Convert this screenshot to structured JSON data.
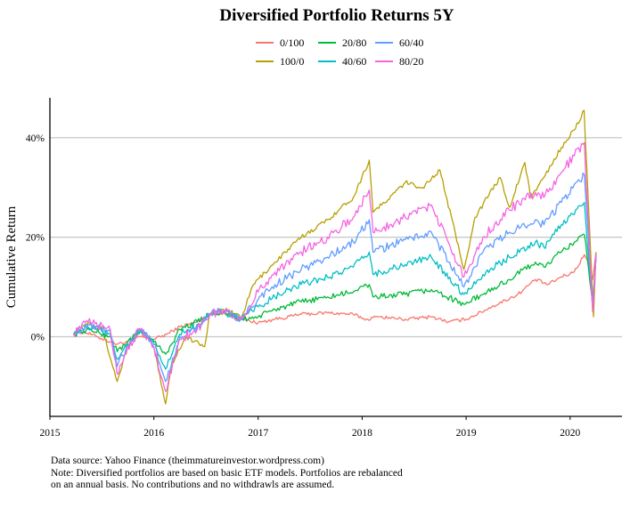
{
  "chart_data": {
    "type": "line",
    "title": "Diversified Portfolio Returns 5Y",
    "ylabel": "Cumulative Return",
    "xlabel": "",
    "x_ticks": [
      "2015",
      "2016",
      "2017",
      "2018",
      "2019",
      "2020"
    ],
    "y_ticks": [
      "0%",
      "20%",
      "40%"
    ],
    "x_range": [
      "2015-01-01",
      "2020-07-01"
    ],
    "ylim": [
      -16,
      48
    ],
    "grid": "horizontal major lines",
    "legend_position": "top",
    "series": [
      {
        "name": "0/100",
        "color": "#F8766D",
        "points": [
          [
            "2015-03-25",
            0.5
          ],
          [
            "2015-05-01",
            1.0
          ],
          [
            "2015-06-15",
            0.0
          ],
          [
            "2015-08-01",
            -1.0
          ],
          [
            "2015-08-25",
            -1.5
          ],
          [
            "2015-10-01",
            -1.0
          ],
          [
            "2015-11-15",
            0.0
          ],
          [
            "2016-01-01",
            -0.5
          ],
          [
            "2016-02-15",
            0.5
          ],
          [
            "2016-04-01",
            2.0
          ],
          [
            "2016-06-01",
            3.0
          ],
          [
            "2016-07-15",
            4.5
          ],
          [
            "2016-09-01",
            4.8
          ],
          [
            "2016-11-01",
            3.5
          ],
          [
            "2017-01-01",
            2.8
          ],
          [
            "2017-03-01",
            3.5
          ],
          [
            "2017-06-01",
            4.5
          ],
          [
            "2017-09-01",
            4.8
          ],
          [
            "2017-12-01",
            4.5
          ],
          [
            "2018-01-15",
            3.5
          ],
          [
            "2018-03-01",
            4.0
          ],
          [
            "2018-06-01",
            3.5
          ],
          [
            "2018-09-01",
            4.0
          ],
          [
            "2018-11-01",
            3.0
          ],
          [
            "2019-01-01",
            3.5
          ],
          [
            "2019-04-01",
            6.0
          ],
          [
            "2019-07-01",
            8.5
          ],
          [
            "2019-09-01",
            11.5
          ],
          [
            "2019-10-15",
            10.5
          ],
          [
            "2019-12-01",
            12.0
          ],
          [
            "2020-01-15",
            13.0
          ],
          [
            "2020-02-20",
            16.5
          ],
          [
            "2020-03-10",
            14.0
          ],
          [
            "2020-03-20",
            11.5
          ],
          [
            "2020-04-01",
            17.0
          ]
        ]
      },
      {
        "name": "100/0",
        "color": "#B79F00",
        "points": [
          [
            "2015-03-25",
            0.5
          ],
          [
            "2015-05-15",
            3.0
          ],
          [
            "2015-07-01",
            2.0
          ],
          [
            "2015-08-25",
            -9.0
          ],
          [
            "2015-10-01",
            -2.0
          ],
          [
            "2015-11-15",
            1.5
          ],
          [
            "2016-01-01",
            -2.0
          ],
          [
            "2016-02-11",
            -13.5
          ],
          [
            "2016-03-01",
            -6.0
          ],
          [
            "2016-04-20",
            0.0
          ],
          [
            "2016-06-27",
            -2.0
          ],
          [
            "2016-07-15",
            4.5
          ],
          [
            "2016-09-01",
            5.5
          ],
          [
            "2016-11-05",
            4.0
          ],
          [
            "2016-12-15",
            10.5
          ],
          [
            "2017-03-01",
            15.0
          ],
          [
            "2017-06-01",
            20.0
          ],
          [
            "2017-09-01",
            23.5
          ],
          [
            "2017-12-01",
            28.0
          ],
          [
            "2018-01-26",
            35.5
          ],
          [
            "2018-02-08",
            25.0
          ],
          [
            "2018-04-01",
            27.5
          ],
          [
            "2018-06-01",
            31.0
          ],
          [
            "2018-08-01",
            30.0
          ],
          [
            "2018-10-01",
            33.5
          ],
          [
            "2018-12-24",
            13.5
          ],
          [
            "2019-02-01",
            24.0
          ],
          [
            "2019-04-30",
            32.0
          ],
          [
            "2019-06-03",
            26.0
          ],
          [
            "2019-07-26",
            35.0
          ],
          [
            "2019-08-15",
            28.0
          ],
          [
            "2019-10-01",
            32.0
          ],
          [
            "2019-12-01",
            38.0
          ],
          [
            "2020-01-15",
            41.5
          ],
          [
            "2020-02-19",
            45.5
          ],
          [
            "2020-03-23",
            4.0
          ],
          [
            "2020-04-01",
            17.0
          ]
        ]
      },
      {
        "name": "20/80",
        "color": "#00BA38",
        "points": [
          [
            "2015-03-25",
            0.5
          ],
          [
            "2015-05-15",
            1.5
          ],
          [
            "2015-08-01",
            0.0
          ],
          [
            "2015-08-25",
            -3.0
          ],
          [
            "2015-10-01",
            -1.0
          ],
          [
            "2015-11-15",
            1.0
          ],
          [
            "2016-01-01",
            -1.0
          ],
          [
            "2016-02-11",
            -3.5
          ],
          [
            "2016-04-01",
            1.5
          ],
          [
            "2016-06-01",
            3.0
          ],
          [
            "2016-07-15",
            4.5
          ],
          [
            "2016-09-01",
            5.0
          ],
          [
            "2016-11-01",
            3.5
          ],
          [
            "2017-01-01",
            4.0
          ],
          [
            "2017-03-01",
            5.5
          ],
          [
            "2017-06-01",
            7.0
          ],
          [
            "2017-09-01",
            8.0
          ],
          [
            "2017-12-01",
            9.0
          ],
          [
            "2018-01-26",
            10.5
          ],
          [
            "2018-02-08",
            8.0
          ],
          [
            "2018-06-01",
            8.5
          ],
          [
            "2018-09-01",
            9.5
          ],
          [
            "2018-12-24",
            6.5
          ],
          [
            "2019-03-01",
            8.5
          ],
          [
            "2019-06-01",
            11.5
          ],
          [
            "2019-09-01",
            15.0
          ],
          [
            "2019-10-01",
            14.0
          ],
          [
            "2019-12-01",
            17.0
          ],
          [
            "2020-02-20",
            20.5
          ],
          [
            "2020-03-20",
            7.0
          ],
          [
            "2020-04-01",
            16.5
          ]
        ]
      },
      {
        "name": "40/60",
        "color": "#00BFC4",
        "points": [
          [
            "2015-03-25",
            0.5
          ],
          [
            "2015-05-15",
            2.0
          ],
          [
            "2015-08-01",
            0.5
          ],
          [
            "2015-08-25",
            -4.5
          ],
          [
            "2015-10-01",
            -1.5
          ],
          [
            "2015-11-15",
            1.2
          ],
          [
            "2016-01-01",
            -1.5
          ],
          [
            "2016-02-11",
            -6.5
          ],
          [
            "2016-04-01",
            0.5
          ],
          [
            "2016-06-01",
            2.5
          ],
          [
            "2016-07-15",
            4.5
          ],
          [
            "2016-09-01",
            5.0
          ],
          [
            "2016-11-01",
            3.5
          ],
          [
            "2017-01-01",
            6.0
          ],
          [
            "2017-03-01",
            8.0
          ],
          [
            "2017-06-01",
            10.5
          ],
          [
            "2017-09-01",
            12.0
          ],
          [
            "2017-12-01",
            14.0
          ],
          [
            "2018-01-26",
            17.0
          ],
          [
            "2018-02-08",
            12.5
          ],
          [
            "2018-06-01",
            14.5
          ],
          [
            "2018-09-01",
            16.0
          ],
          [
            "2018-12-24",
            8.5
          ],
          [
            "2019-03-01",
            12.5
          ],
          [
            "2019-06-01",
            16.0
          ],
          [
            "2019-09-01",
            19.0
          ],
          [
            "2019-10-01",
            18.0
          ],
          [
            "2019-12-01",
            22.5
          ],
          [
            "2020-02-20",
            27.0
          ],
          [
            "2020-03-20",
            6.0
          ],
          [
            "2020-04-01",
            16.0
          ]
        ]
      },
      {
        "name": "60/40",
        "color": "#619CFF",
        "points": [
          [
            "2015-03-25",
            0.5
          ],
          [
            "2015-05-15",
            2.5
          ],
          [
            "2015-08-01",
            1.0
          ],
          [
            "2015-08-25",
            -6.0
          ],
          [
            "2015-10-01",
            -2.0
          ],
          [
            "2015-11-15",
            1.5
          ],
          [
            "2016-01-01",
            -1.5
          ],
          [
            "2016-02-11",
            -9.0
          ],
          [
            "2016-04-01",
            0.0
          ],
          [
            "2016-06-01",
            2.0
          ],
          [
            "2016-07-15",
            4.5
          ],
          [
            "2016-09-01",
            5.2
          ],
          [
            "2016-11-01",
            3.5
          ],
          [
            "2017-01-01",
            7.5
          ],
          [
            "2017-03-01",
            10.5
          ],
          [
            "2017-06-01",
            13.5
          ],
          [
            "2017-09-01",
            16.0
          ],
          [
            "2017-12-01",
            19.0
          ],
          [
            "2018-01-26",
            23.5
          ],
          [
            "2018-02-08",
            17.0
          ],
          [
            "2018-06-01",
            19.5
          ],
          [
            "2018-09-01",
            21.0
          ],
          [
            "2018-12-24",
            10.0
          ],
          [
            "2019-03-01",
            17.0
          ],
          [
            "2019-06-01",
            21.0
          ],
          [
            "2019-09-01",
            23.5
          ],
          [
            "2019-10-01",
            22.5
          ],
          [
            "2019-12-01",
            27.0
          ],
          [
            "2020-02-20",
            32.5
          ],
          [
            "2020-03-20",
            5.5
          ],
          [
            "2020-04-01",
            16.0
          ]
        ]
      },
      {
        "name": "80/20",
        "color": "#F564E3",
        "points": [
          [
            "2015-03-25",
            0.5
          ],
          [
            "2015-05-15",
            3.0
          ],
          [
            "2015-08-01",
            1.5
          ],
          [
            "2015-08-25",
            -7.5
          ],
          [
            "2015-10-01",
            -2.0
          ],
          [
            "2015-11-15",
            1.5
          ],
          [
            "2016-01-01",
            -2.0
          ],
          [
            "2016-02-11",
            -11.0
          ],
          [
            "2016-04-01",
            -0.5
          ],
          [
            "2016-06-01",
            1.5
          ],
          [
            "2016-07-15",
            4.5
          ],
          [
            "2016-09-01",
            5.3
          ],
          [
            "2016-11-01",
            3.5
          ],
          [
            "2017-01-01",
            9.0
          ],
          [
            "2017-03-01",
            13.0
          ],
          [
            "2017-06-01",
            17.0
          ],
          [
            "2017-09-01",
            20.0
          ],
          [
            "2017-12-01",
            24.0
          ],
          [
            "2018-01-26",
            29.5
          ],
          [
            "2018-02-08",
            21.0
          ],
          [
            "2018-06-01",
            24.0
          ],
          [
            "2018-09-01",
            26.5
          ],
          [
            "2018-12-24",
            12.0
          ],
          [
            "2019-03-01",
            20.0
          ],
          [
            "2019-06-01",
            25.5
          ],
          [
            "2019-09-01",
            29.0
          ],
          [
            "2019-10-01",
            28.0
          ],
          [
            "2019-12-01",
            33.0
          ],
          [
            "2020-02-20",
            39.0
          ],
          [
            "2020-03-20",
            5.0
          ],
          [
            "2020-04-01",
            16.5
          ]
        ]
      }
    ]
  },
  "caption": {
    "line1": "Data source: Yahoo Finance (theimmatureinvestor.wordpress.com)",
    "line2": "Note: Diversified portfolios are based on basic ETF models. Portfolios are rebalanced",
    "line3": "on an annual basis. No contributions and no withdrawls are assumed."
  }
}
